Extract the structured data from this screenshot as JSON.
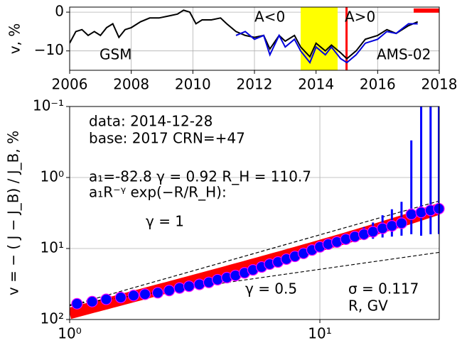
{
  "chart_data": [
    {
      "type": "line",
      "ylabel": "v, %",
      "xlim": [
        2006,
        2018
      ],
      "xticks": [
        2006,
        2008,
        2010,
        2012,
        2014,
        2016,
        2018
      ],
      "ylim": [
        -15,
        1.3
      ],
      "yticks": [
        {
          "value": -10,
          "label": "−10"
        },
        0
      ],
      "grid": true,
      "series": [
        {
          "name": "GSM",
          "color": "#000000",
          "x": [
            2006.0,
            2006.2,
            2006.4,
            2006.6,
            2006.8,
            2007.0,
            2007.2,
            2007.4,
            2007.6,
            2007.8,
            2008.0,
            2008.3,
            2008.6,
            2008.9,
            2009.2,
            2009.5,
            2009.7,
            2009.9,
            2010.1,
            2010.3,
            2010.6,
            2010.9,
            2011.1,
            2011.4,
            2011.7,
            2012.0,
            2012.3,
            2012.5,
            2012.8,
            2013.0,
            2013.3,
            2013.5,
            2013.8,
            2014.0,
            2014.3,
            2014.5,
            2014.8,
            2015.0,
            2015.3,
            2015.6,
            2016.0,
            2016.3,
            2016.6,
            2017.0,
            2017.3
          ],
          "values": [
            -8,
            -5,
            -4.5,
            -6,
            -5,
            -6,
            -4,
            -3,
            -6.5,
            -4.5,
            -4,
            -2.5,
            -1.5,
            -1.5,
            -1,
            -0.5,
            0.5,
            0,
            -3,
            -2,
            -2,
            -1.5,
            -3,
            -5,
            -6,
            -6.5,
            -6,
            -9.5,
            -6,
            -7.5,
            -6,
            -9,
            -11.5,
            -8,
            -10,
            -8.5,
            -10.5,
            -12,
            -10,
            -7,
            -6,
            -4.5,
            -5.5,
            -3.5,
            -2.5
          ]
        },
        {
          "name": "AMS-02",
          "color": "#0000dd",
          "x": [
            2011.4,
            2011.7,
            2012.0,
            2012.3,
            2012.5,
            2012.8,
            2013.0,
            2013.3,
            2013.5,
            2013.8,
            2014.0,
            2014.3,
            2014.5,
            2014.8,
            2015.0,
            2015.3,
            2015.6,
            2016.0,
            2016.3,
            2016.6,
            2017.0,
            2017.3
          ],
          "values": [
            -6,
            -5,
            -7,
            -6,
            -11,
            -6,
            -9,
            -7,
            -10,
            -13,
            -9,
            -11,
            -9,
            -12,
            -13,
            -11,
            -8,
            -7,
            -5,
            -5.5,
            -3,
            -3
          ]
        }
      ],
      "spans": [
        {
          "x": [
            2013.5,
            2014.7
          ],
          "color": "#ffff00"
        }
      ],
      "vlines": [
        {
          "x": 2014.99,
          "color": "#ff0000"
        }
      ],
      "hbars": [
        {
          "x": [
            2017.17,
            2018
          ],
          "y": 0.4,
          "color": "#ff0000"
        }
      ],
      "annotations": [
        "A<0",
        "A>0"
      ]
    },
    {
      "type": "scatter",
      "xlabel": "R, GV",
      "ylabel": "v = − ( J − J_B) / J_B, %",
      "xscale": "log",
      "yscale": "log",
      "xlim": [
        1,
        30
      ],
      "xticks": [
        {
          "value": 1,
          "label": "10⁰"
        },
        {
          "value": 10,
          "label": "10¹"
        }
      ],
      "ylim": [
        100,
        0.1
      ],
      "yticks": [
        {
          "value": 0.1,
          "label": "10⁻¹"
        },
        {
          "value": 1,
          "label": "10⁰"
        },
        {
          "value": 10,
          "label": "10¹"
        },
        {
          "value": 100,
          "label": "10²"
        }
      ],
      "grid": true,
      "color": "#0000ff",
      "edgecolor": "#ff00ff",
      "x": [
        1.07,
        1.23,
        1.4,
        1.6,
        1.8,
        2.0,
        2.25,
        2.5,
        2.75,
        3.0,
        3.3,
        3.6,
        3.9,
        4.25,
        4.6,
        5.0,
        5.4,
        5.85,
        6.3,
        6.8,
        7.35,
        7.95,
        8.6,
        9.3,
        10.0,
        10.8,
        11.7,
        12.7,
        13.8,
        15.0,
        16.3,
        17.8,
        19.4,
        21.2,
        23.2,
        25.4,
        27.7,
        29.9
      ],
      "values": [
        60,
        56,
        52,
        49,
        46,
        44,
        42,
        39,
        36,
        34,
        32,
        30,
        27.5,
        25.7,
        24,
        22,
        20,
        18.2,
        16.6,
        15.5,
        14.1,
        12.9,
        11.7,
        10.5,
        9.5,
        8.7,
        8.1,
        7.4,
        6.8,
        6.3,
        5.8,
        5.2,
        4.8,
        4.4,
        3.3,
        3.1,
        2.9,
        2.75
      ],
      "errors": [
        null,
        null,
        null,
        null,
        null,
        null,
        null,
        null,
        null,
        null,
        null,
        null,
        null,
        null,
        null,
        null,
        null,
        null,
        null,
        null,
        null,
        null,
        null,
        null,
        null,
        null,
        null,
        0.8,
        1.0,
        1.3,
        1.5,
        1.8,
        2.0,
        2.2,
        3.0,
        3.5,
        3.4,
        3.5
      ],
      "fit": {
        "a1": -82.8,
        "gamma": 0.92,
        "RH": 110.7,
        "color": "#ff0000"
      },
      "ref_lines": [
        {
          "gamma": 1,
          "label": "γ = 1"
        },
        {
          "gamma": 0.5,
          "label": "γ = 0.5"
        }
      ],
      "annotations": [
        "data: 2014-12-28",
        "base: 2017   CRN=+47",
        "a₁=-82.8  γ = 0.92  R_H = 110.7",
        "a₁R⁻ᵞ exp(−R/R_H):",
        "σ = 0.117"
      ]
    }
  ]
}
